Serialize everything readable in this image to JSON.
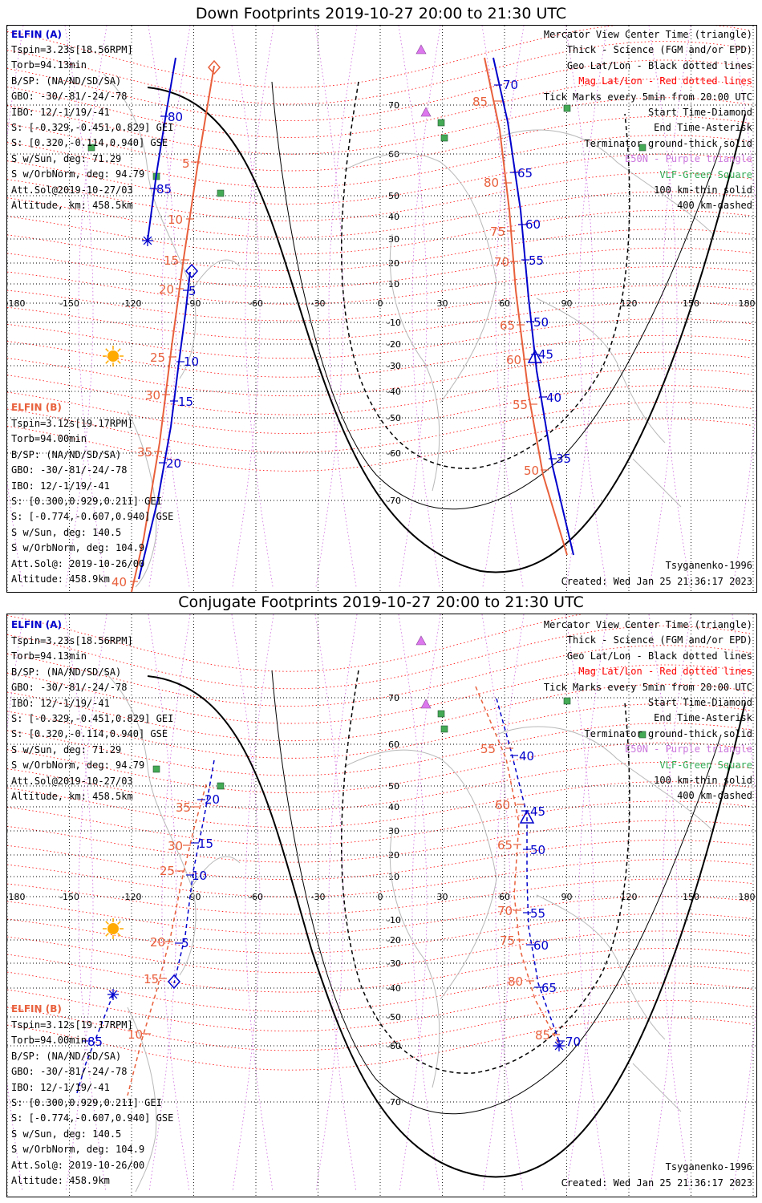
{
  "panels": [
    {
      "title": "Down Footprints 2019-10-27 20:00 to 21:30 UTC",
      "model": "Tsyganenko-1996",
      "created": "Created: Wed Jan 25 21:36:17 2023",
      "elfin_a": {
        "label": "ELFIN (A)",
        "lines": [
          "Tspin=3.23s[18.56RPM]",
          "Torb=94.13min",
          "B/SP: (NA/ND/SD/SA)",
          "GBO: -30/-81/-24/-78",
          "IBO: 12/-1/19/-41",
          "S: [-0.329,-0.451,0.829] GEI",
          "S: [0.320,-0.114,0.940] GSE",
          "S w/Sun, deg: 71.29",
          "S w/OrbNorm, deg: 94.79",
          "Att.Sol@2019-10-27/03",
          "Altitude, km: 458.5km"
        ]
      },
      "elfin_b": {
        "label": "ELFIN (B)",
        "lines": [
          "Tspin=3.12s[19.17RPM]",
          "Torb=94.00min",
          "B/SP: (NA/ND/SD/SA)",
          "GBO: -30/-81/-24/-78",
          "IBO: 12/-1/19/-41",
          "S: [0.300,0.929,0.211] GEI",
          "S: [-0.774,-0.607,0.940] GSE",
          "S w/Sun, deg: 140.5",
          "S w/OrbNorm, deg: 104.9",
          "Att.Sol@: 2019-10-26/00",
          "Altitude: 458.9km"
        ]
      },
      "legend": [
        "Mercator View Center Time (triangle)",
        "Thick - Science (FGM and/or EPD)",
        "Geo Lat/Lon - Black dotted lines",
        "Mag Lat/Lon - Red dotted lines",
        "Tick Marks every 5min from 20:00 UTC",
        "Start Time-Diamond",
        "End Time-Asterisk",
        "Terminator ground-thick solid",
        "E50N - Purple triangle",
        "VLF-Green Square",
        "100 km-thin solid",
        "400 km-dashed"
      ],
      "lon_labels": [
        "-180",
        "-150",
        "-120",
        "-90",
        "-60",
        "-30",
        "0",
        "30",
        "60",
        "90",
        "120",
        "150",
        "180"
      ],
      "lat_labels": [
        "70",
        "60",
        "50",
        "40",
        "30",
        "20",
        "10",
        "-10",
        "-20",
        "-30",
        "-40",
        "-50",
        "-60",
        "-70"
      ],
      "a_ticks_left": [
        "80",
        "85",
        "5",
        "10",
        "15",
        "20"
      ],
      "b_ticks_left": [
        "5",
        "10",
        "15",
        "20",
        "25",
        "30",
        "35",
        "40"
      ],
      "a_ticks_right": [
        "70",
        "65",
        "60",
        "55",
        "50",
        "45",
        "40",
        "35"
      ],
      "b_ticks_right": [
        "85",
        "80",
        "75",
        "70",
        "65",
        "60",
        "55",
        "50"
      ]
    },
    {
      "title": "Conjugate Footprints 2019-10-27 20:00 to 21:30 UTC",
      "model": "Tsyganenko-1996",
      "created": "Created: Wed Jan 25 21:36:17 2023",
      "elfin_a": {
        "label": "ELFIN (A)",
        "lines": [
          "Tspin=3.23s[18.56RPM]",
          "Torb=94.13min",
          "B/SP: (NA/ND/SD/SA)",
          "GBO: -30/-81/-24/-78",
          "IBO: 12/-1/19/-41",
          "S: [-0.329,-0.451,0.829] GEI",
          "S: [0.320,-0.114,0.940] GSE",
          "S w/Sun, deg: 71.29",
          "S w/OrbNorm, deg: 94.79",
          "Att.Sol@2019-10-27/03",
          "Altitude, km: 458.5km"
        ]
      },
      "elfin_b": {
        "label": "ELFIN (B)",
        "lines": [
          "Tspin=3.12s[19.17RPM]",
          "Torb=94.00min",
          "B/SP: (NA/ND/SD/SA)",
          "GBO: -30/-81/-24/-78",
          "IBO: 12/-1/19/-41",
          "S: [0.300,0.929,0.211] GEI",
          "S: [-0.774,-0.607,0.940] GSE",
          "S w/Sun, deg: 140.5",
          "S w/OrbNorm, deg: 104.9",
          "Att.Sol@: 2019-10-26/00",
          "Altitude: 458.9km"
        ]
      },
      "legend": [
        "Mercator View Center Time (triangle)",
        "Thick - Science (FGM and/or EPD)",
        "Geo Lat/Lon - Black dotted lines",
        "Mag Lat/Lon - Red dotted lines",
        "Tick Marks every 5min from 20:00 UTC",
        "Start Time-Diamond",
        "End Time-Asterisk",
        "Terminator ground-thick solid",
        "E50N - Purple triangle",
        "VLF-Green Square",
        "100 km-thin solid",
        "400 km-dashed"
      ],
      "lon_labels": [
        "-180",
        "-150",
        "-120",
        "-90",
        "-60",
        "-30",
        "0",
        "30",
        "60",
        "90",
        "120",
        "150",
        "180"
      ],
      "lat_labels": [
        "70",
        "60",
        "50",
        "40",
        "30",
        "20",
        "10",
        "-10",
        "-20",
        "-30",
        "-40",
        "-50",
        "-60",
        "-70"
      ],
      "a_ticks_left": [
        "85",
        "5",
        "10",
        "15",
        "20"
      ],
      "b_ticks_left": [
        "10",
        "15",
        "20",
        "25",
        "30",
        "35"
      ],
      "a_ticks_right": [
        "40",
        "45",
        "50",
        "55",
        "60",
        "65",
        "70"
      ],
      "b_ticks_right": [
        "55",
        "60",
        "65",
        "70",
        "75",
        "80",
        "85"
      ]
    }
  ],
  "colors": {
    "elfin_a": "#0000cc",
    "elfin_b": "#e8603c",
    "mag_grid": "#ff0000",
    "geo_grid": "#000000",
    "purple": "#cc66dd",
    "green": "#44aa55",
    "sun": "#ffaa00"
  }
}
